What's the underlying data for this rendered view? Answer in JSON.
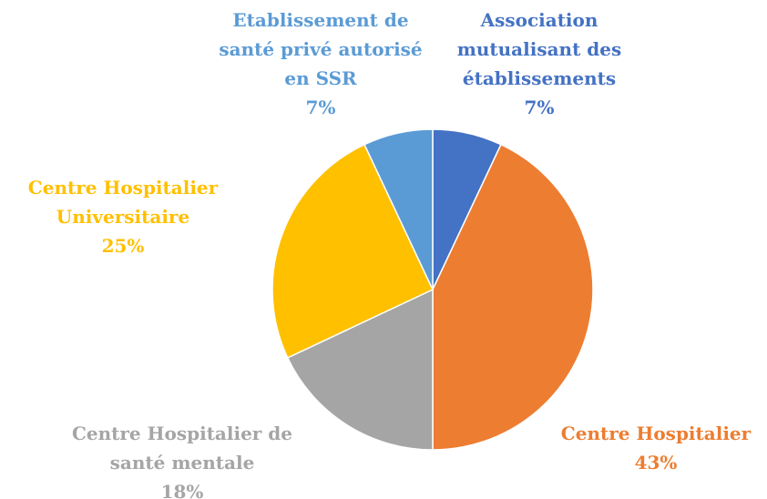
{
  "chart_data": {
    "type": "pie",
    "categories": [
      "Association mutualisant des établissements",
      "Centre Hospitalier",
      "Centre Hospitalier de santé mentale",
      "Centre Hospitalier Universitaire",
      "Etablissement de santé privé autorisé en SSR"
    ],
    "values": [
      7,
      43,
      18,
      25,
      7
    ],
    "value_labels": [
      "7%",
      "43%",
      "18%",
      "25%",
      "7%"
    ],
    "colors": [
      "#4472c4",
      "#ed7d31",
      "#a5a5a5",
      "#ffc000",
      "#5b9bd5"
    ]
  }
}
